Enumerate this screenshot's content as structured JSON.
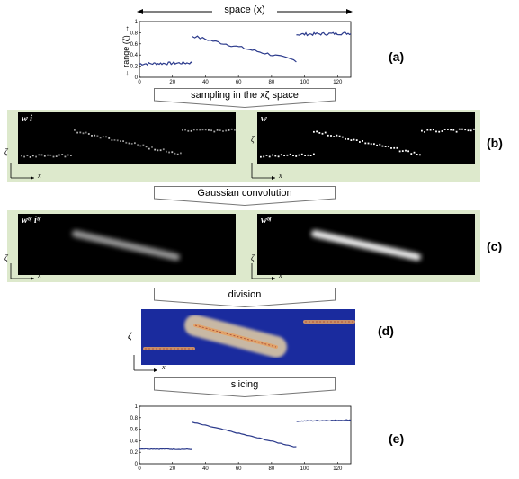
{
  "labels": {
    "space_axis": "space (x)",
    "range_axis": "← range (ζ) →",
    "panel_a": "(a)",
    "panel_b": "(b)",
    "panel_c": "(c)",
    "panel_d": "(d)",
    "panel_e": "(e)",
    "zeta": "ζ",
    "x": "x"
  },
  "steps": {
    "sampling": "sampling in the xζ space",
    "gaussian": "Gaussian convolution",
    "division": "division",
    "slicing": "slicing"
  },
  "image_labels": {
    "wi": "w i",
    "w": "w",
    "wbf_ibf": "wᵇᶠ iᵇᶠ",
    "wbf": "wᵇᶠ"
  },
  "chart_data": [
    {
      "type": "line",
      "panel": "(a)",
      "xlim": [
        0,
        128
      ],
      "ylim": [
        0,
        1
      ],
      "xticks": [
        0,
        20,
        40,
        60,
        80,
        100,
        120
      ],
      "yticks": [
        0,
        0.2,
        0.4,
        0.6,
        0.8,
        1
      ],
      "segments": [
        {
          "x": [
            0,
            32
          ],
          "y": [
            0.24,
            0.26
          ]
        },
        {
          "x": [
            32,
            95
          ],
          "y": [
            0.74,
            0.3
          ]
        },
        {
          "x": [
            95,
            128
          ],
          "y": [
            0.77,
            0.79
          ]
        }
      ],
      "noisy": true
    },
    {
      "type": "line",
      "panel": "(e)",
      "xlim": [
        0,
        128
      ],
      "ylim": [
        0,
        1
      ],
      "xticks": [
        0,
        20,
        40,
        60,
        80,
        100,
        120
      ],
      "yticks": [
        0,
        0.2,
        0.4,
        0.6,
        0.8,
        1
      ],
      "segments": [
        {
          "x": [
            0,
            32
          ],
          "y": [
            0.26,
            0.25
          ]
        },
        {
          "x": [
            32,
            95
          ],
          "y": [
            0.72,
            0.29
          ]
        },
        {
          "x": [
            95,
            128
          ],
          "y": [
            0.74,
            0.76
          ]
        }
      ],
      "noisy": false
    }
  ]
}
